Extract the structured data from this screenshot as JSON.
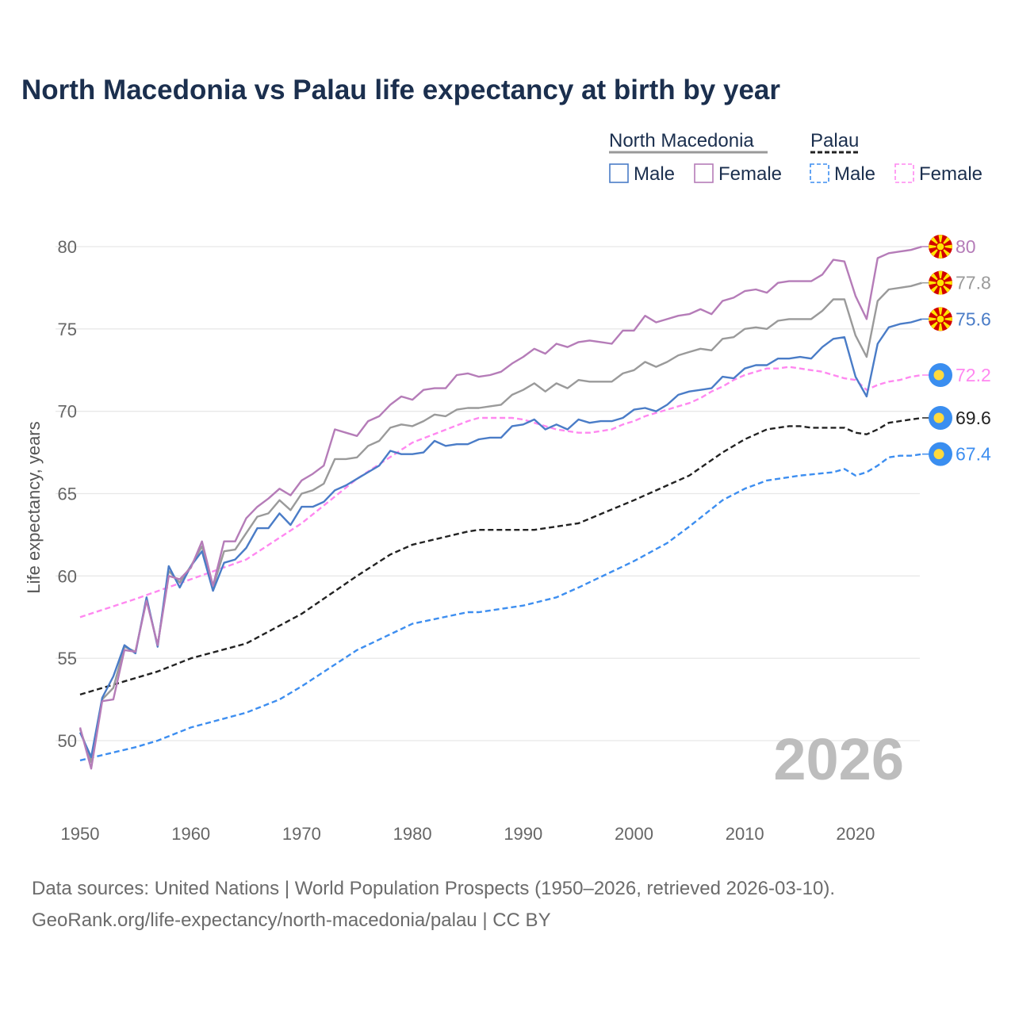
{
  "title": "North Macedonia vs Palau life expectancy at birth by year",
  "legend": {
    "groups": [
      {
        "name": "North Macedonia",
        "items": [
          "Male",
          "Female"
        ]
      },
      {
        "name": "Palau",
        "items": [
          "Male",
          "Female"
        ]
      }
    ]
  },
  "year_watermark": "2026",
  "source_lines": [
    "Data sources: United Nations | World Population Prospects (1950–2026, retrieved 2026-03-10).",
    "GeoRank.org/life-expectancy/north-macedonia/palau | CC BY"
  ],
  "chart_data": {
    "type": "line",
    "title": "North Macedonia vs Palau life expectancy at birth by year",
    "xlabel": "",
    "ylabel": "Life expectancy, years",
    "xlim": [
      1950,
      2026
    ],
    "ylim": [
      47,
      82
    ],
    "xticks": [
      1950,
      1960,
      1970,
      1980,
      1990,
      2000,
      2010,
      2020
    ],
    "yticks": [
      50,
      55,
      60,
      65,
      70,
      75,
      80
    ],
    "grid": true,
    "legend_position": "top-right",
    "series": [
      {
        "name": "North Macedonia Male",
        "country": "North Macedonia",
        "sex": "Male",
        "color": "#4a7cc7",
        "dashed": false,
        "end_label": "75.6",
        "flag": "mk",
        "start_year": 1950,
        "values": [
          50.5,
          49.0,
          52.6,
          53.9,
          55.8,
          55.3,
          58.7,
          55.7,
          60.6,
          59.3,
          60.6,
          61.5,
          59.1,
          60.8,
          61.0,
          61.7,
          62.9,
          62.9,
          63.8,
          63.1,
          64.2,
          64.2,
          64.5,
          65.2,
          65.5,
          65.9,
          66.3,
          66.7,
          67.6,
          67.4,
          67.4,
          67.5,
          68.2,
          67.9,
          68.0,
          68.0,
          68.3,
          68.4,
          68.4,
          69.1,
          69.2,
          69.5,
          68.9,
          69.2,
          68.9,
          69.5,
          69.3,
          69.4,
          69.4,
          69.6,
          70.1,
          70.2,
          70.0,
          70.4,
          71.0,
          71.2,
          71.3,
          71.4,
          72.1,
          72.0,
          72.6,
          72.8,
          72.8,
          73.2,
          73.2,
          73.3,
          73.2,
          73.9,
          74.4,
          74.5,
          72.1,
          70.9,
          74.1,
          75.1,
          75.3,
          75.4,
          75.6
        ]
      },
      {
        "name": "North Macedonia Female",
        "country": "North Macedonia",
        "sex": "Female",
        "color": "#b57cb8",
        "dashed": false,
        "end_label": "80",
        "flag": "mk",
        "start_year": 1950,
        "values": [
          50.8,
          48.3,
          52.4,
          52.5,
          55.5,
          55.4,
          58.5,
          55.8,
          60.0,
          59.8,
          60.5,
          62.1,
          59.4,
          62.1,
          62.1,
          63.5,
          64.2,
          64.7,
          65.3,
          64.9,
          65.8,
          66.2,
          66.7,
          68.9,
          68.7,
          68.5,
          69.4,
          69.7,
          70.4,
          70.9,
          70.7,
          71.3,
          71.4,
          71.4,
          72.2,
          72.3,
          72.1,
          72.2,
          72.4,
          72.9,
          73.3,
          73.8,
          73.5,
          74.1,
          73.9,
          74.2,
          74.3,
          74.2,
          74.1,
          74.9,
          74.9,
          75.8,
          75.4,
          75.6,
          75.8,
          75.9,
          76.2,
          75.9,
          76.7,
          76.9,
          77.3,
          77.4,
          77.2,
          77.8,
          77.9,
          77.9,
          77.9,
          78.3,
          79.2,
          79.1,
          77.0,
          75.6,
          79.3,
          79.6,
          79.7,
          79.8,
          80.0
        ]
      },
      {
        "name": "North Macedonia Total",
        "country": "North Macedonia",
        "sex": "Total",
        "color": "#9a9a9a",
        "dashed": false,
        "end_label": "77.8",
        "flag": "mk",
        "start_year": 1950,
        "values": [
          50.7,
          48.7,
          52.5,
          53.2,
          55.7,
          55.4,
          58.6,
          55.8,
          60.3,
          59.6,
          60.6,
          61.8,
          59.3,
          61.5,
          61.6,
          62.6,
          63.6,
          63.8,
          64.6,
          64.0,
          65.0,
          65.2,
          65.6,
          67.1,
          67.1,
          67.2,
          67.9,
          68.2,
          69.0,
          69.2,
          69.1,
          69.4,
          69.8,
          69.7,
          70.1,
          70.2,
          70.2,
          70.3,
          70.4,
          71.0,
          71.3,
          71.7,
          71.2,
          71.7,
          71.4,
          71.9,
          71.8,
          71.8,
          71.8,
          72.3,
          72.5,
          73.0,
          72.7,
          73.0,
          73.4,
          73.6,
          73.8,
          73.7,
          74.4,
          74.5,
          75.0,
          75.1,
          75.0,
          75.5,
          75.6,
          75.6,
          75.6,
          76.1,
          76.8,
          76.8,
          74.6,
          73.3,
          76.7,
          77.4,
          77.5,
          77.6,
          77.8
        ]
      },
      {
        "name": "Palau Female",
        "country": "Palau",
        "sex": "Female",
        "color": "#ff88f0",
        "dashed": true,
        "end_label": "72.2",
        "flag": "pw",
        "points": [
          [
            1950,
            57.5
          ],
          [
            1955,
            58.6
          ],
          [
            1960,
            59.8
          ],
          [
            1965,
            61.0
          ],
          [
            1970,
            63.2
          ],
          [
            1975,
            65.9
          ],
          [
            1980,
            68.1
          ],
          [
            1985,
            69.4
          ],
          [
            1986,
            69.6
          ],
          [
            1989,
            69.6
          ],
          [
            1990,
            69.5
          ],
          [
            1991,
            69.3
          ],
          [
            1992,
            69.1
          ],
          [
            1993,
            68.9
          ],
          [
            1994,
            68.8
          ],
          [
            1995,
            68.7
          ],
          [
            1996,
            68.7
          ],
          [
            1997,
            68.8
          ],
          [
            1998,
            68.9
          ],
          [
            1999,
            69.2
          ],
          [
            2000,
            69.4
          ],
          [
            2001,
            69.7
          ],
          [
            2002,
            69.9
          ],
          [
            2003,
            70.1
          ],
          [
            2004,
            70.3
          ],
          [
            2005,
            70.5
          ],
          [
            2006,
            70.8
          ],
          [
            2007,
            71.2
          ],
          [
            2008,
            71.5
          ],
          [
            2009,
            71.9
          ],
          [
            2010,
            72.2
          ],
          [
            2011,
            72.4
          ],
          [
            2012,
            72.6
          ],
          [
            2013,
            72.6
          ],
          [
            2014,
            72.7
          ],
          [
            2015,
            72.6
          ],
          [
            2016,
            72.5
          ],
          [
            2017,
            72.4
          ],
          [
            2018,
            72.2
          ],
          [
            2019,
            72.0
          ],
          [
            2020,
            71.9
          ],
          [
            2021,
            71.3
          ],
          [
            2022,
            71.6
          ],
          [
            2023,
            71.8
          ],
          [
            2024,
            71.9
          ],
          [
            2025,
            72.1
          ],
          [
            2026,
            72.2
          ]
        ]
      },
      {
        "name": "Palau Total",
        "country": "Palau",
        "sex": "Total",
        "color": "#222222",
        "dashed": true,
        "end_label": "69.6",
        "flag": "pw",
        "points": [
          [
            1950,
            52.8
          ],
          [
            1955,
            53.8
          ],
          [
            1957,
            54.2
          ],
          [
            1960,
            55.0
          ],
          [
            1965,
            55.9
          ],
          [
            1970,
            57.7
          ],
          [
            1975,
            60.0
          ],
          [
            1978,
            61.3
          ],
          [
            1980,
            61.9
          ],
          [
            1985,
            62.7
          ],
          [
            1986,
            62.8
          ],
          [
            1991,
            62.8
          ],
          [
            1995,
            63.2
          ],
          [
            2000,
            64.6
          ],
          [
            2005,
            66.1
          ],
          [
            2008,
            67.5
          ],
          [
            2010,
            68.3
          ],
          [
            2012,
            68.9
          ],
          [
            2014,
            69.1
          ],
          [
            2015,
            69.1
          ],
          [
            2016,
            69.0
          ],
          [
            2019,
            69.0
          ],
          [
            2020,
            68.7
          ],
          [
            2021,
            68.6
          ],
          [
            2022,
            68.9
          ],
          [
            2023,
            69.3
          ],
          [
            2024,
            69.4
          ],
          [
            2025,
            69.5
          ],
          [
            2026,
            69.6
          ]
        ]
      },
      {
        "name": "Palau Male",
        "country": "Palau",
        "sex": "Male",
        "color": "#3d8ef0",
        "dashed": true,
        "end_label": "67.4",
        "flag": "pw",
        "points": [
          [
            1950,
            48.8
          ],
          [
            1955,
            49.6
          ],
          [
            1957,
            50.0
          ],
          [
            1960,
            50.8
          ],
          [
            1965,
            51.7
          ],
          [
            1968,
            52.5
          ],
          [
            1970,
            53.3
          ],
          [
            1975,
            55.5
          ],
          [
            1980,
            57.1
          ],
          [
            1985,
            57.8
          ],
          [
            1986,
            57.8
          ],
          [
            1990,
            58.2
          ],
          [
            1993,
            58.7
          ],
          [
            1995,
            59.3
          ],
          [
            2000,
            60.9
          ],
          [
            2003,
            62.0
          ],
          [
            2005,
            63.0
          ],
          [
            2008,
            64.6
          ],
          [
            2010,
            65.3
          ],
          [
            2012,
            65.8
          ],
          [
            2015,
            66.1
          ],
          [
            2018,
            66.3
          ],
          [
            2019,
            66.5
          ],
          [
            2020,
            66.1
          ],
          [
            2021,
            66.3
          ],
          [
            2022,
            66.7
          ],
          [
            2023,
            67.2
          ],
          [
            2024,
            67.3
          ],
          [
            2025,
            67.3
          ],
          [
            2026,
            67.4
          ]
        ]
      }
    ]
  }
}
